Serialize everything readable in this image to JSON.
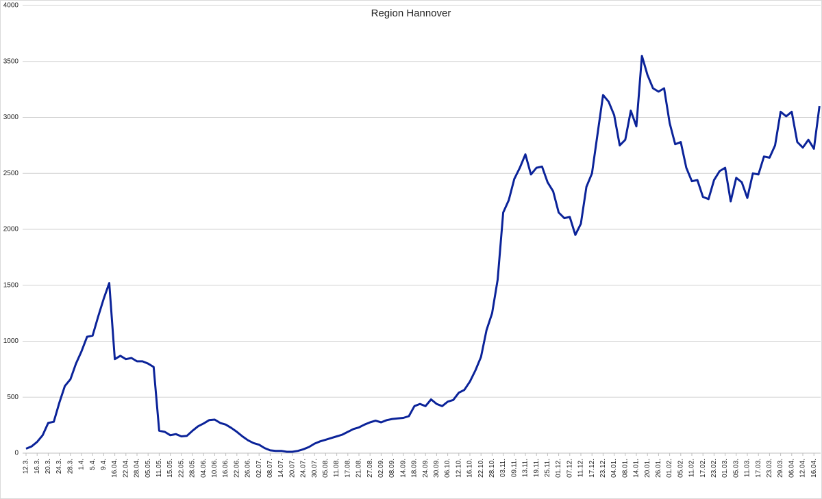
{
  "chart_data": {
    "type": "line",
    "title": "Region Hannover",
    "categories": [
      "12.3.",
      null,
      "16.3.",
      null,
      "20.3.",
      null,
      "24.3.",
      null,
      "28.3.",
      null,
      "1.4.",
      null,
      "5.4.",
      null,
      "9.4.",
      null,
      "16.04.",
      null,
      "22.04.",
      null,
      "28.04.",
      null,
      "05.05.",
      null,
      "11.05.",
      null,
      "15.05.",
      null,
      "22.05.",
      null,
      "28.05.",
      null,
      "04.06.",
      null,
      "10.06.",
      null,
      "16.06.",
      null,
      "22.06.",
      null,
      "26.06.",
      null,
      "02.07.",
      null,
      "08.07.",
      null,
      "14.07.",
      null,
      "20.07.",
      null,
      "24.07.",
      null,
      "30.07.",
      null,
      "05.08.",
      null,
      "11.08.",
      null,
      "17.08.",
      null,
      "21.08.",
      null,
      "27.08.",
      null,
      "02.09.",
      null,
      "08.09.",
      null,
      "14.09.",
      null,
      "18.09.",
      null,
      "24.09.",
      null,
      "30.09.",
      null,
      "06.10.",
      null,
      "12.10.",
      null,
      "16.10.",
      null,
      "22.10.",
      null,
      "28.10.",
      null,
      "03.11.",
      null,
      "09.11.",
      null,
      "13.11.",
      null,
      "19.11.",
      null,
      "25.11.",
      null,
      "01.12.",
      null,
      "07.12.",
      null,
      "11.12.",
      null,
      "17.12.",
      null,
      "23.12.",
      null,
      "04.01.",
      null,
      "08.01.",
      null,
      "14.01.",
      null,
      "20.01.",
      null,
      "26.01.",
      null,
      "01.02.",
      null,
      "05.02.",
      null,
      "11.02.",
      null,
      "17.02.",
      null,
      "23.02.",
      null,
      "01.03.",
      null,
      "05.03.",
      null,
      "11.03.",
      null,
      "17.03.",
      null,
      "23.03.",
      null,
      "29.03.",
      null,
      "06.04.",
      null,
      "12.04.",
      null,
      "16.04.",
      null
    ],
    "values": [
      40,
      60,
      100,
      160,
      270,
      280,
      450,
      600,
      660,
      800,
      910,
      1040,
      1050,
      1220,
      1380,
      1520,
      840,
      870,
      840,
      850,
      820,
      820,
      800,
      770,
      200,
      190,
      160,
      170,
      150,
      155,
      200,
      240,
      265,
      295,
      300,
      270,
      255,
      225,
      190,
      150,
      115,
      90,
      75,
      45,
      25,
      20,
      20,
      12,
      12,
      20,
      35,
      55,
      85,
      105,
      120,
      135,
      150,
      165,
      190,
      215,
      230,
      255,
      275,
      290,
      275,
      295,
      305,
      310,
      315,
      330,
      420,
      440,
      420,
      480,
      440,
      420,
      460,
      475,
      540,
      565,
      640,
      740,
      860,
      1100,
      1250,
      1550,
      2150,
      2260,
      2450,
      2550,
      2670,
      2490,
      2550,
      2560,
      2420,
      2340,
      2150,
      2100,
      2110,
      1950,
      2050,
      2380,
      2500,
      2850,
      3200,
      3140,
      3020,
      2750,
      2800,
      3060,
      2920,
      3550,
      3380,
      3260,
      3230,
      3260,
      2950,
      2760,
      2780,
      2550,
      2430,
      2440,
      2290,
      2270,
      2440,
      2520,
      2550,
      2250,
      2460,
      2420,
      2280,
      2500,
      2490,
      2650,
      2640,
      2750,
      3050,
      3010,
      3050,
      2780,
      2730,
      2800,
      2720,
      3100
    ],
    "color": "#0b2399",
    "ylim": [
      0,
      4000
    ],
    "yticks": [
      0,
      500,
      1000,
      1500,
      2000,
      2500,
      3000,
      3500,
      4000
    ],
    "grid": true
  }
}
